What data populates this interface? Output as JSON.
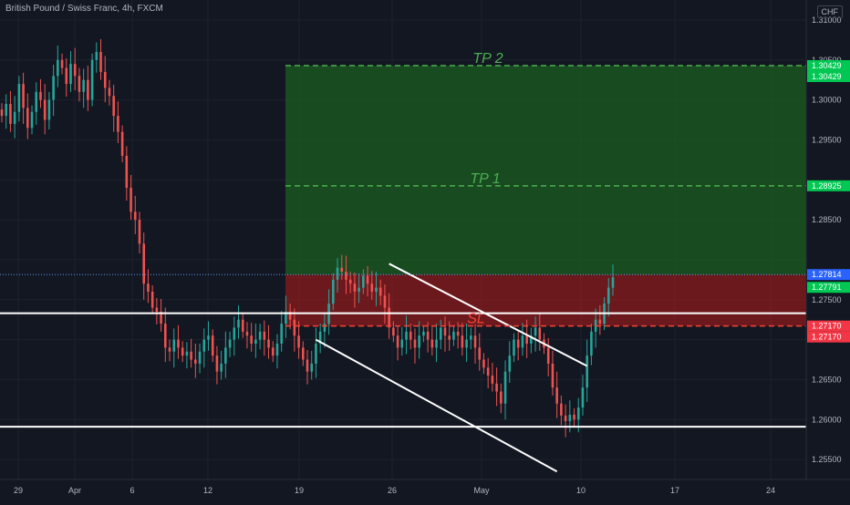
{
  "header": {
    "symbol_title": "British Pound / Swiss Franc, 4h, FXCM",
    "currency": "CHF"
  },
  "colors": {
    "background": "#131722",
    "grid": "#1e222d",
    "up": "#26a69a",
    "down": "#ef5350",
    "target_zone": "#1b5e20",
    "stop_zone": "#b71c1c",
    "target_line": "#4caf50",
    "stop_line": "#f44336",
    "trendline": "#ffffff",
    "price_label_blue": "#2962ff"
  },
  "chart_data": {
    "type": "candlestick",
    "instrument": "British Pound / Swiss Franc",
    "timeframe": "4h",
    "x_ticks": [
      "29",
      "Apr",
      "6",
      "12",
      "19",
      "26",
      "May",
      "10",
      "17",
      "24"
    ],
    "ylim": [
      1.2525,
      1.3125
    ],
    "y_ticks": [
      "1.31000",
      "1.30500",
      "1.30000",
      "1.29500",
      "1.28500",
      "1.27500",
      "1.26500",
      "1.26000",
      "1.25500"
    ],
    "price_labels": [
      {
        "text": "1.30429",
        "value": 1.30429,
        "color": "#00c853"
      },
      {
        "text": "1.30429",
        "value": 1.30429,
        "color": "#00c853"
      },
      {
        "text": "1.28925",
        "value": 1.28925,
        "color": "#00c853"
      },
      {
        "text": "1.27814",
        "value": 1.27814,
        "color": "#2962ff"
      },
      {
        "text": "1.27791",
        "value": 1.27791,
        "color": "#00c853"
      },
      {
        "text": "1.27170",
        "value": 1.2717,
        "color": "#f23645"
      },
      {
        "text": "1.27170",
        "value": 1.2717,
        "color": "#f23645"
      }
    ],
    "levels": [
      {
        "label": "TP 2",
        "value": 1.30429,
        "color": "#4caf50"
      },
      {
        "label": "TP 1",
        "value": 1.28925,
        "color": "#4caf50"
      },
      {
        "label": "SL",
        "value": 1.2717,
        "color": "#f44336"
      }
    ],
    "entry": 1.27814,
    "horizontal_lines": [
      1.2733,
      1.2591
    ],
    "trendlines": [
      {
        "from": [
          90.0,
          1.2795
        ],
        "to": [
          136.0,
          1.2667
        ]
      },
      {
        "from": [
          73.0,
          1.27
        ],
        "to": [
          129.0,
          1.2535
        ]
      }
    ],
    "close_series": [
      1.298,
      1.2995,
      1.297,
      1.2985,
      1.302,
      1.299,
      1.2965,
      1.2985,
      1.301,
      1.3,
      1.2975,
      1.3,
      1.303,
      1.305,
      1.304,
      1.302,
      1.3045,
      1.303,
      1.301,
      1.3025,
      1.3,
      1.305,
      1.306,
      1.3035,
      1.3015,
      1.3005,
      1.298,
      1.296,
      1.293,
      1.289,
      1.286,
      1.285,
      1.282,
      1.277,
      1.276,
      1.274,
      1.2735,
      1.272,
      1.269,
      1.2685,
      1.27,
      1.269,
      1.268,
      1.2685,
      1.2675,
      1.267,
      1.2685,
      1.27,
      1.2705,
      1.268,
      1.266,
      1.267,
      1.269,
      1.27,
      1.2715,
      1.2725,
      1.271,
      1.2705,
      1.2695,
      1.27,
      1.271,
      1.27,
      1.269,
      1.268,
      1.2695,
      1.272,
      1.2735,
      1.2725,
      1.2705,
      1.269,
      1.2675,
      1.266,
      1.267,
      1.2695,
      1.271,
      1.272,
      1.2745,
      1.2775,
      1.279,
      1.2785,
      1.2775,
      1.277,
      1.276,
      1.2765,
      1.278,
      1.277,
      1.276,
      1.2765,
      1.2755,
      1.274,
      1.2715,
      1.2705,
      1.269,
      1.27,
      1.271,
      1.27,
      1.269,
      1.2705,
      1.271,
      1.27,
      1.269,
      1.27,
      1.2715,
      1.2705,
      1.27,
      1.271,
      1.2705,
      1.269,
      1.27,
      1.2705,
      1.269,
      1.2675,
      1.2665,
      1.2655,
      1.2645,
      1.2635,
      1.262,
      1.266,
      1.268,
      1.27,
      1.269,
      1.2705,
      1.2695,
      1.2705,
      1.2715,
      1.27,
      1.269,
      1.267,
      1.264,
      1.262,
      1.2605,
      1.2598,
      1.2606,
      1.26,
      1.2615,
      1.264,
      1.268,
      1.271,
      1.2725,
      1.272,
      1.2745,
      1.2765,
      1.2778
    ]
  }
}
